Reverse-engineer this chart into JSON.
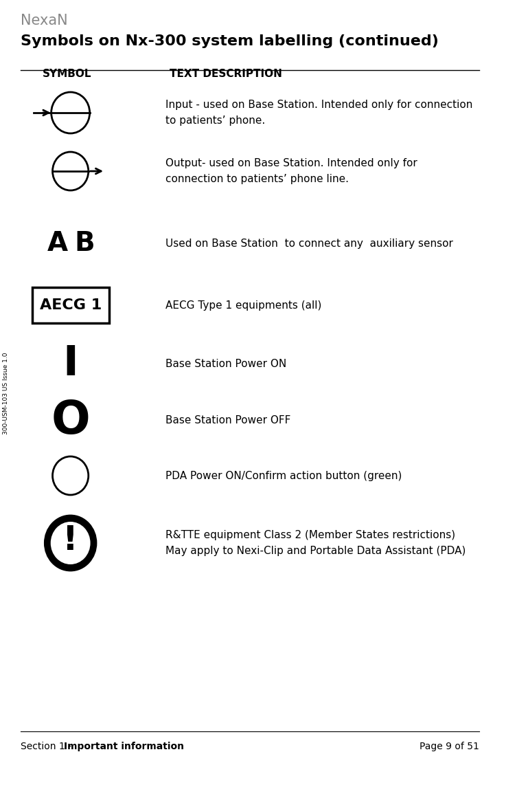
{
  "page_title": "Symbols on Nx-300 system labelling (continued)",
  "logo_text": "NexaN",
  "header_symbol": "SYMBOL",
  "header_text": "TEXT DESCRIPTION",
  "footer_section": "Section 1 - ",
  "footer_section_bold": "Important information",
  "footer_right": "Page 9 of 51",
  "sidebar_text": "300-USM-103 US Issue 1.0",
  "bg_color": "#ffffff",
  "text_color": "#000000",
  "rows": [
    {
      "description": "Input - used on Base Station. Intended only for connection\nto patients’ phone.",
      "symbol_type": "input_arrow"
    },
    {
      "description": "Output- used on Base Station. Intended only for\nconnection to patients’ phone line.",
      "symbol_type": "output_arrow"
    },
    {
      "description": "Used on Base Station  to connect any  auxiliary sensor",
      "symbol_type": "AB"
    },
    {
      "description": "AECG Type 1 equipments (all)",
      "symbol_type": "AECG1"
    },
    {
      "description": "Base Station Power ON",
      "symbol_type": "power_on"
    },
    {
      "description": "Base Station Power OFF",
      "symbol_type": "power_off"
    },
    {
      "description": "PDA Power ON/Confirm action button (green)",
      "symbol_type": "circle_empty"
    },
    {
      "description": "R&TTE equipment Class 2 (Member States restrictions)\nMay apply to Nexi-Clip and Portable Data Assistant (PDA)",
      "symbol_type": "exclamation_circle"
    }
  ]
}
